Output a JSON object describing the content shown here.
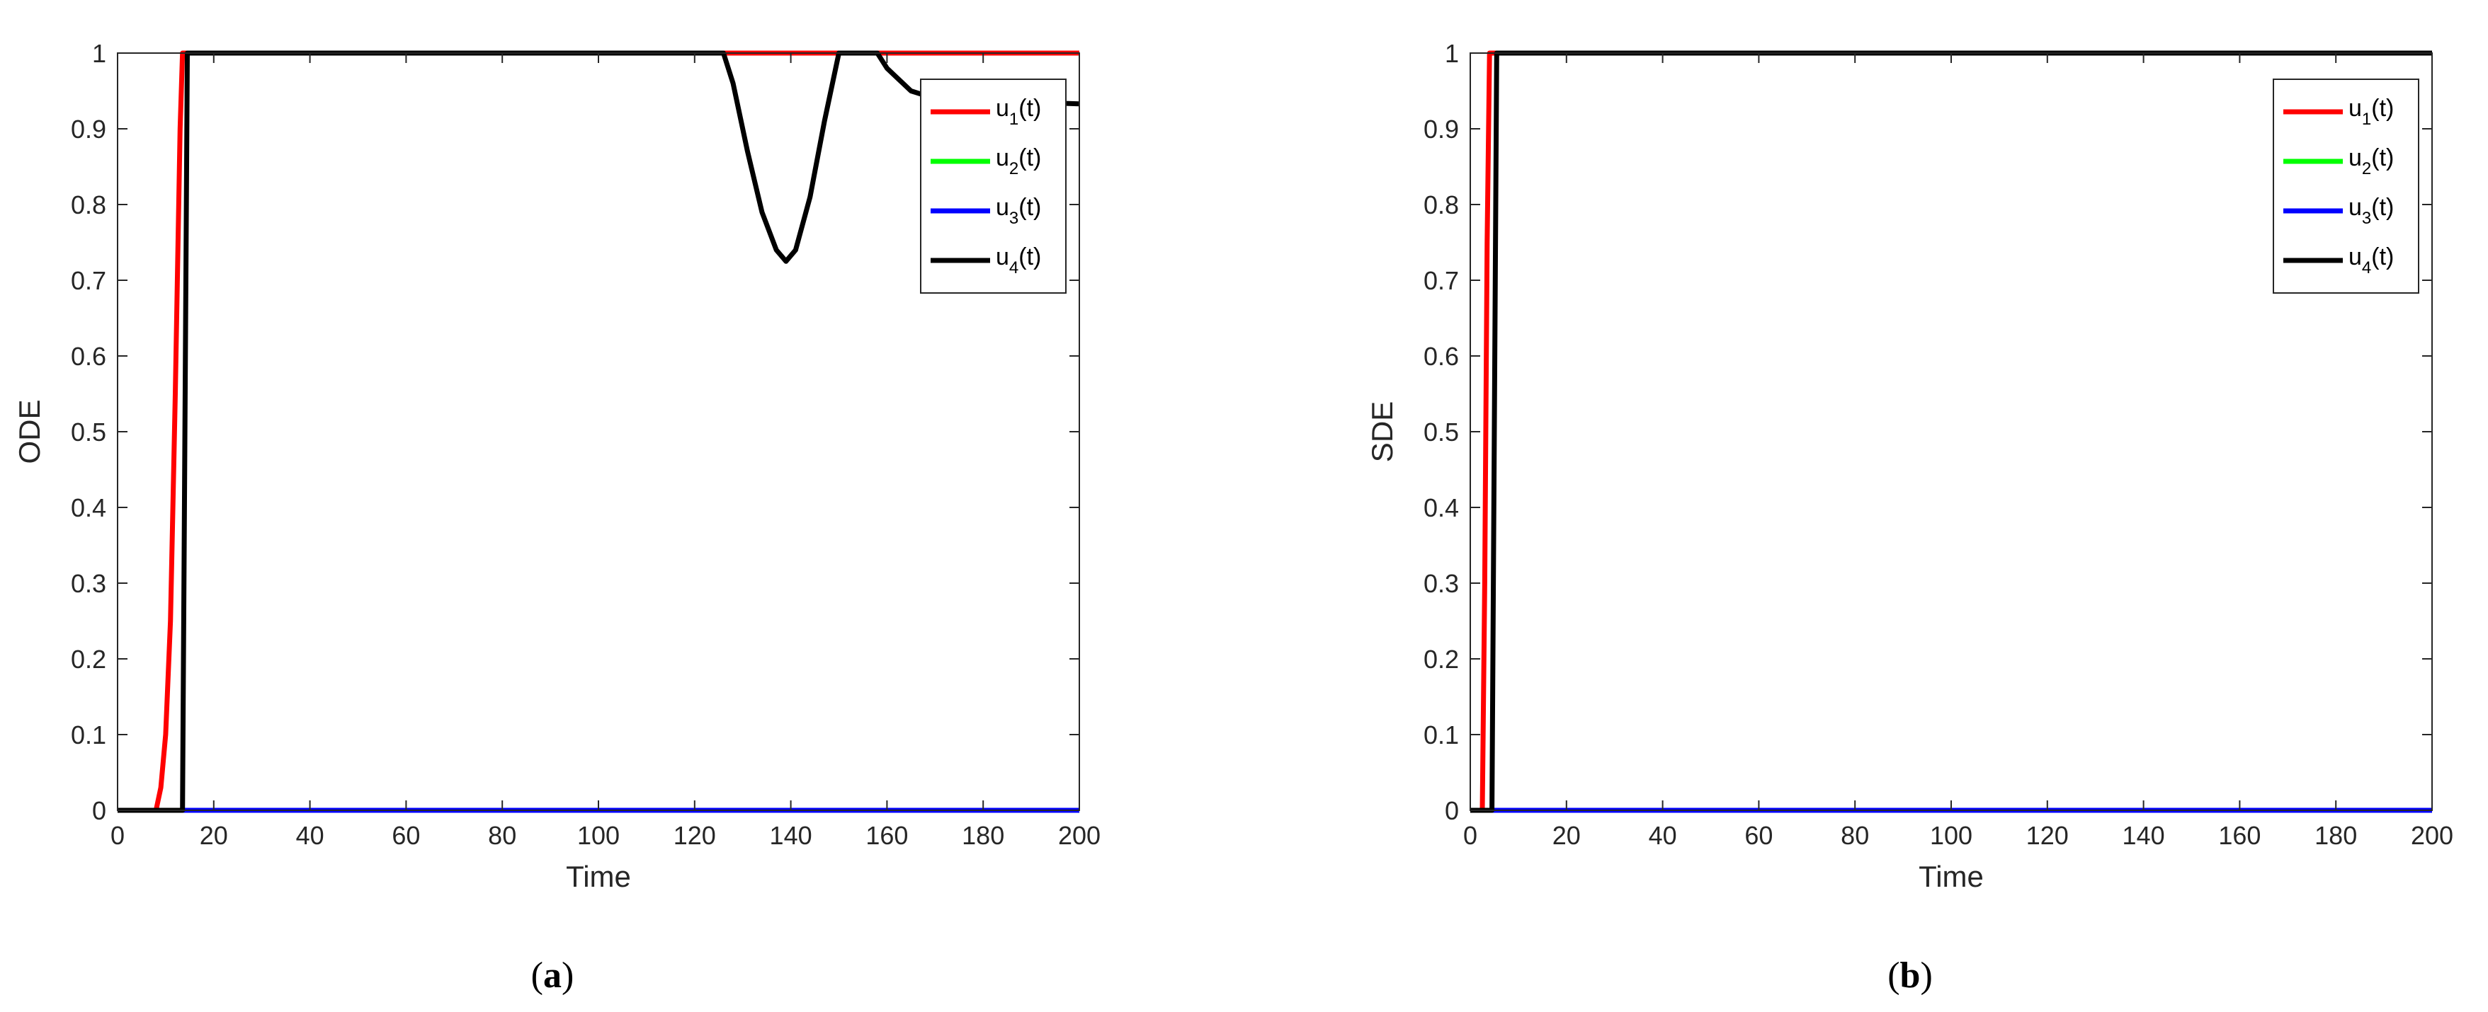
{
  "chart_data": [
    {
      "panel": "a",
      "caption_letter": "a",
      "type": "line",
      "xlabel": "Time",
      "ylabel": "ODE",
      "xlim": [
        0,
        200
      ],
      "ylim": [
        0,
        1
      ],
      "xticks": [
        0,
        20,
        40,
        60,
        80,
        100,
        120,
        140,
        160,
        180,
        200
      ],
      "yticks": [
        0,
        0.1,
        0.2,
        0.3,
        0.4,
        0.5,
        0.6,
        0.7,
        0.8,
        0.9,
        1
      ],
      "grid": false,
      "legend_position": "top-right",
      "series": [
        {
          "name": "u1(t)",
          "base": "u",
          "sub": "1",
          "suffix": "(t)",
          "color": "#ff0000",
          "x": [
            0,
            8,
            9,
            10,
            11,
            12,
            13,
            13.5,
            14,
            200
          ],
          "y": [
            0,
            0,
            0.03,
            0.1,
            0.25,
            0.55,
            0.9,
            1,
            1,
            1
          ]
        },
        {
          "name": "u2(t)",
          "base": "u",
          "sub": "2",
          "suffix": "(t)",
          "color": "#00ff00",
          "x": [
            0,
            200
          ],
          "y": [
            0,
            0
          ]
        },
        {
          "name": "u3(t)",
          "base": "u",
          "sub": "3",
          "suffix": "(t)",
          "color": "#0000ff",
          "x": [
            0,
            200
          ],
          "y": [
            0,
            0
          ]
        },
        {
          "name": "u4(t)",
          "base": "u",
          "sub": "4",
          "suffix": "(t)",
          "color": "#000000",
          "x": [
            0,
            13.5,
            14.5,
            126,
            128,
            131,
            134,
            137,
            139,
            141,
            144,
            147,
            150,
            152,
            158,
            160,
            165,
            170,
            180,
            190,
            200
          ],
          "y": [
            0,
            0,
            1,
            1,
            0.96,
            0.87,
            0.79,
            0.74,
            0.725,
            0.74,
            0.81,
            0.91,
            1,
            1,
            1,
            0.98,
            0.95,
            0.94,
            0.935,
            0.935,
            0.933
          ]
        }
      ]
    },
    {
      "panel": "b",
      "caption_letter": "b",
      "type": "line",
      "xlabel": "Time",
      "ylabel": "SDE",
      "xlim": [
        0,
        200
      ],
      "ylim": [
        0,
        1
      ],
      "xticks": [
        0,
        20,
        40,
        60,
        80,
        100,
        120,
        140,
        160,
        180,
        200
      ],
      "yticks": [
        0,
        0.1,
        0.2,
        0.3,
        0.4,
        0.5,
        0.6,
        0.7,
        0.8,
        0.9,
        1
      ],
      "grid": false,
      "legend_position": "top-right",
      "series": [
        {
          "name": "u1(t)",
          "base": "u",
          "sub": "1",
          "suffix": "(t)",
          "color": "#ff0000",
          "x": [
            0,
            2.5,
            3,
            3.5,
            4,
            4.5,
            200
          ],
          "y": [
            0,
            0,
            0.3,
            0.75,
            1,
            1,
            1
          ]
        },
        {
          "name": "u2(t)",
          "base": "u",
          "sub": "2",
          "suffix": "(t)",
          "color": "#00ff00",
          "x": [
            0,
            200
          ],
          "y": [
            0,
            0
          ]
        },
        {
          "name": "u3(t)",
          "base": "u",
          "sub": "3",
          "suffix": "(t)",
          "color": "#0000ff",
          "x": [
            0,
            200
          ],
          "y": [
            0,
            0
          ]
        },
        {
          "name": "u4(t)",
          "base": "u",
          "sub": "4",
          "suffix": "(t)",
          "color": "#000000",
          "x": [
            0,
            4.5,
            5.5,
            200
          ],
          "y": [
            0,
            0,
            1,
            1
          ]
        }
      ]
    }
  ]
}
